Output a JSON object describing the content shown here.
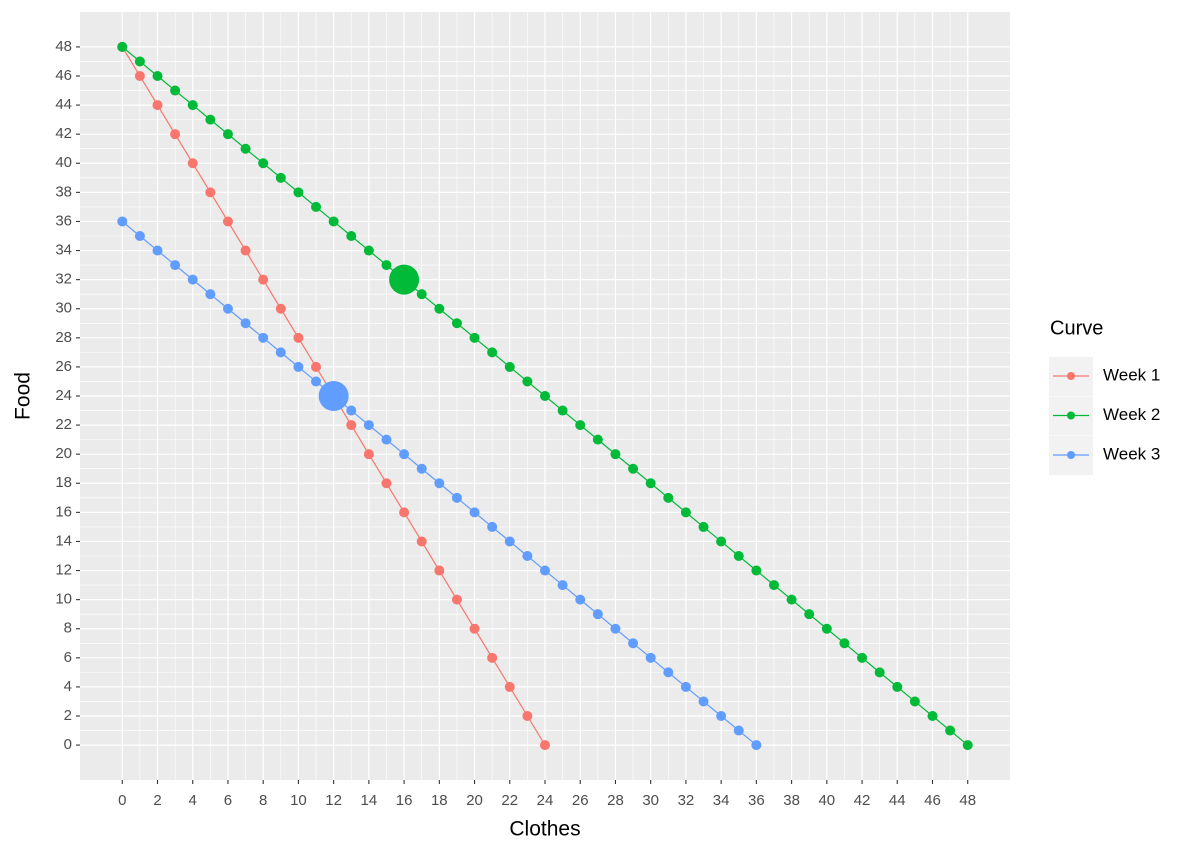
{
  "chart_data": {
    "type": "line",
    "x_label": "Clothes",
    "y_label": "Food",
    "legend_title": "Curve",
    "legend_position": "right",
    "xlim": [
      -2.4,
      50.4
    ],
    "ylim": [
      -2.4,
      50.4
    ],
    "xticks": [
      0,
      2,
      4,
      6,
      8,
      10,
      12,
      14,
      16,
      18,
      20,
      22,
      24,
      26,
      28,
      30,
      32,
      34,
      36,
      38,
      40,
      42,
      44,
      46,
      48
    ],
    "yticks": [
      0,
      2,
      4,
      6,
      8,
      10,
      12,
      14,
      16,
      18,
      20,
      22,
      24,
      26,
      28,
      30,
      32,
      34,
      36,
      38,
      40,
      42,
      44,
      46,
      48
    ],
    "grid": true,
    "series": [
      {
        "name": "Week 1",
        "color": "#F8766D",
        "x": [
          0,
          1,
          2,
          3,
          4,
          5,
          6,
          7,
          8,
          9,
          10,
          11,
          12,
          13,
          14,
          15,
          16,
          17,
          18,
          19,
          20,
          21,
          22,
          23,
          24
        ],
        "values": [
          48,
          46,
          44,
          42,
          40,
          38,
          36,
          34,
          32,
          30,
          28,
          26,
          24,
          22,
          20,
          18,
          16,
          14,
          12,
          10,
          8,
          6,
          4,
          2,
          0
        ]
      },
      {
        "name": "Week 2",
        "color": "#00BA38",
        "x": [
          0,
          1,
          2,
          3,
          4,
          5,
          6,
          7,
          8,
          9,
          10,
          11,
          12,
          13,
          14,
          15,
          16,
          17,
          18,
          19,
          20,
          21,
          22,
          23,
          24,
          25,
          26,
          27,
          28,
          29,
          30,
          31,
          32,
          33,
          34,
          35,
          36,
          37,
          38,
          39,
          40,
          41,
          42,
          43,
          44,
          45,
          46,
          47,
          48
        ],
        "values": [
          48,
          47,
          46,
          45,
          44,
          43,
          42,
          41,
          40,
          39,
          38,
          37,
          36,
          35,
          34,
          33,
          32,
          31,
          30,
          29,
          28,
          27,
          26,
          25,
          24,
          23,
          22,
          21,
          20,
          19,
          18,
          17,
          16,
          15,
          14,
          13,
          12,
          11,
          10,
          9,
          8,
          7,
          6,
          5,
          4,
          3,
          2,
          1,
          0
        ]
      },
      {
        "name": "Week 3",
        "color": "#619CFF",
        "x": [
          0,
          1,
          2,
          3,
          4,
          5,
          6,
          7,
          8,
          9,
          10,
          11,
          12,
          13,
          14,
          15,
          16,
          17,
          18,
          19,
          20,
          21,
          22,
          23,
          24,
          25,
          26,
          27,
          28,
          29,
          30,
          31,
          32,
          33,
          34,
          35,
          36
        ],
        "values": [
          36,
          35,
          34,
          33,
          32,
          31,
          30,
          29,
          28,
          27,
          26,
          25,
          24,
          23,
          22,
          21,
          20,
          19,
          18,
          17,
          16,
          15,
          14,
          13,
          12,
          11,
          10,
          9,
          8,
          7,
          6,
          5,
          4,
          3,
          2,
          1,
          0
        ]
      }
    ],
    "highlights": [
      {
        "x": 16,
        "y": 32,
        "color": "#00BA38"
      },
      {
        "x": 12,
        "y": 24,
        "color": "#619CFF"
      }
    ]
  }
}
